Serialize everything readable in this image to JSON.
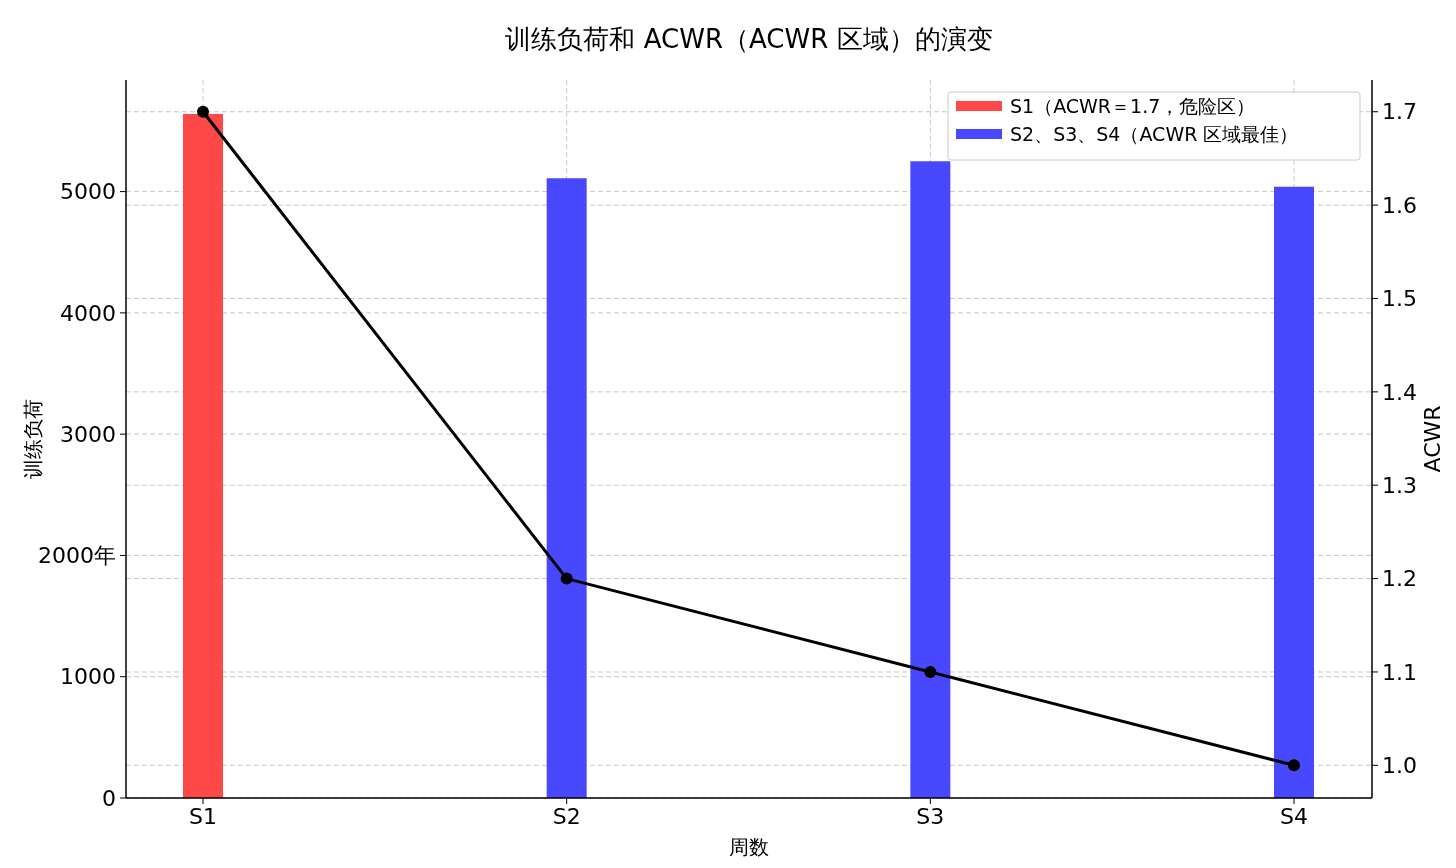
{
  "chart_data": {
    "type": "bar",
    "title": "训练负荷和 ACWR（ACWR 区域）的演变",
    "xlabel": "周数",
    "ylabel": "训练负荷",
    "y2label": "ACWR",
    "categories": [
      "S1",
      "S2",
      "S3",
      "S4"
    ],
    "series": [
      {
        "name": "S1（ACWR＝1.7，危险区）",
        "color": "#ff4848",
        "values": [
          5640,
          null,
          null,
          null
        ]
      },
      {
        "name": "S2、S3、S4（ACWR 区域最佳）",
        "color": "#4848ff",
        "values": [
          null,
          5110,
          5250,
          5040
        ]
      },
      {
        "type": "line",
        "axis": "y2",
        "color": "#000000",
        "marker": "circle",
        "values": [
          1.7,
          1.2,
          1.1,
          1.0
        ]
      }
    ],
    "ylim": [
      0,
      5920
    ],
    "yticks": [
      0,
      1000,
      {
        "value": 2000,
        "label": "2000年"
      },
      3000,
      4000,
      5000
    ],
    "y2lim": [
      0.965,
      1.734
    ],
    "y2ticks": [
      {
        "value": 1,
        "label": "1.0"
      },
      1.1,
      1.2,
      1.3,
      1.4,
      1.5,
      1.6,
      1.7
    ],
    "grid": true,
    "legend": "top right"
  }
}
